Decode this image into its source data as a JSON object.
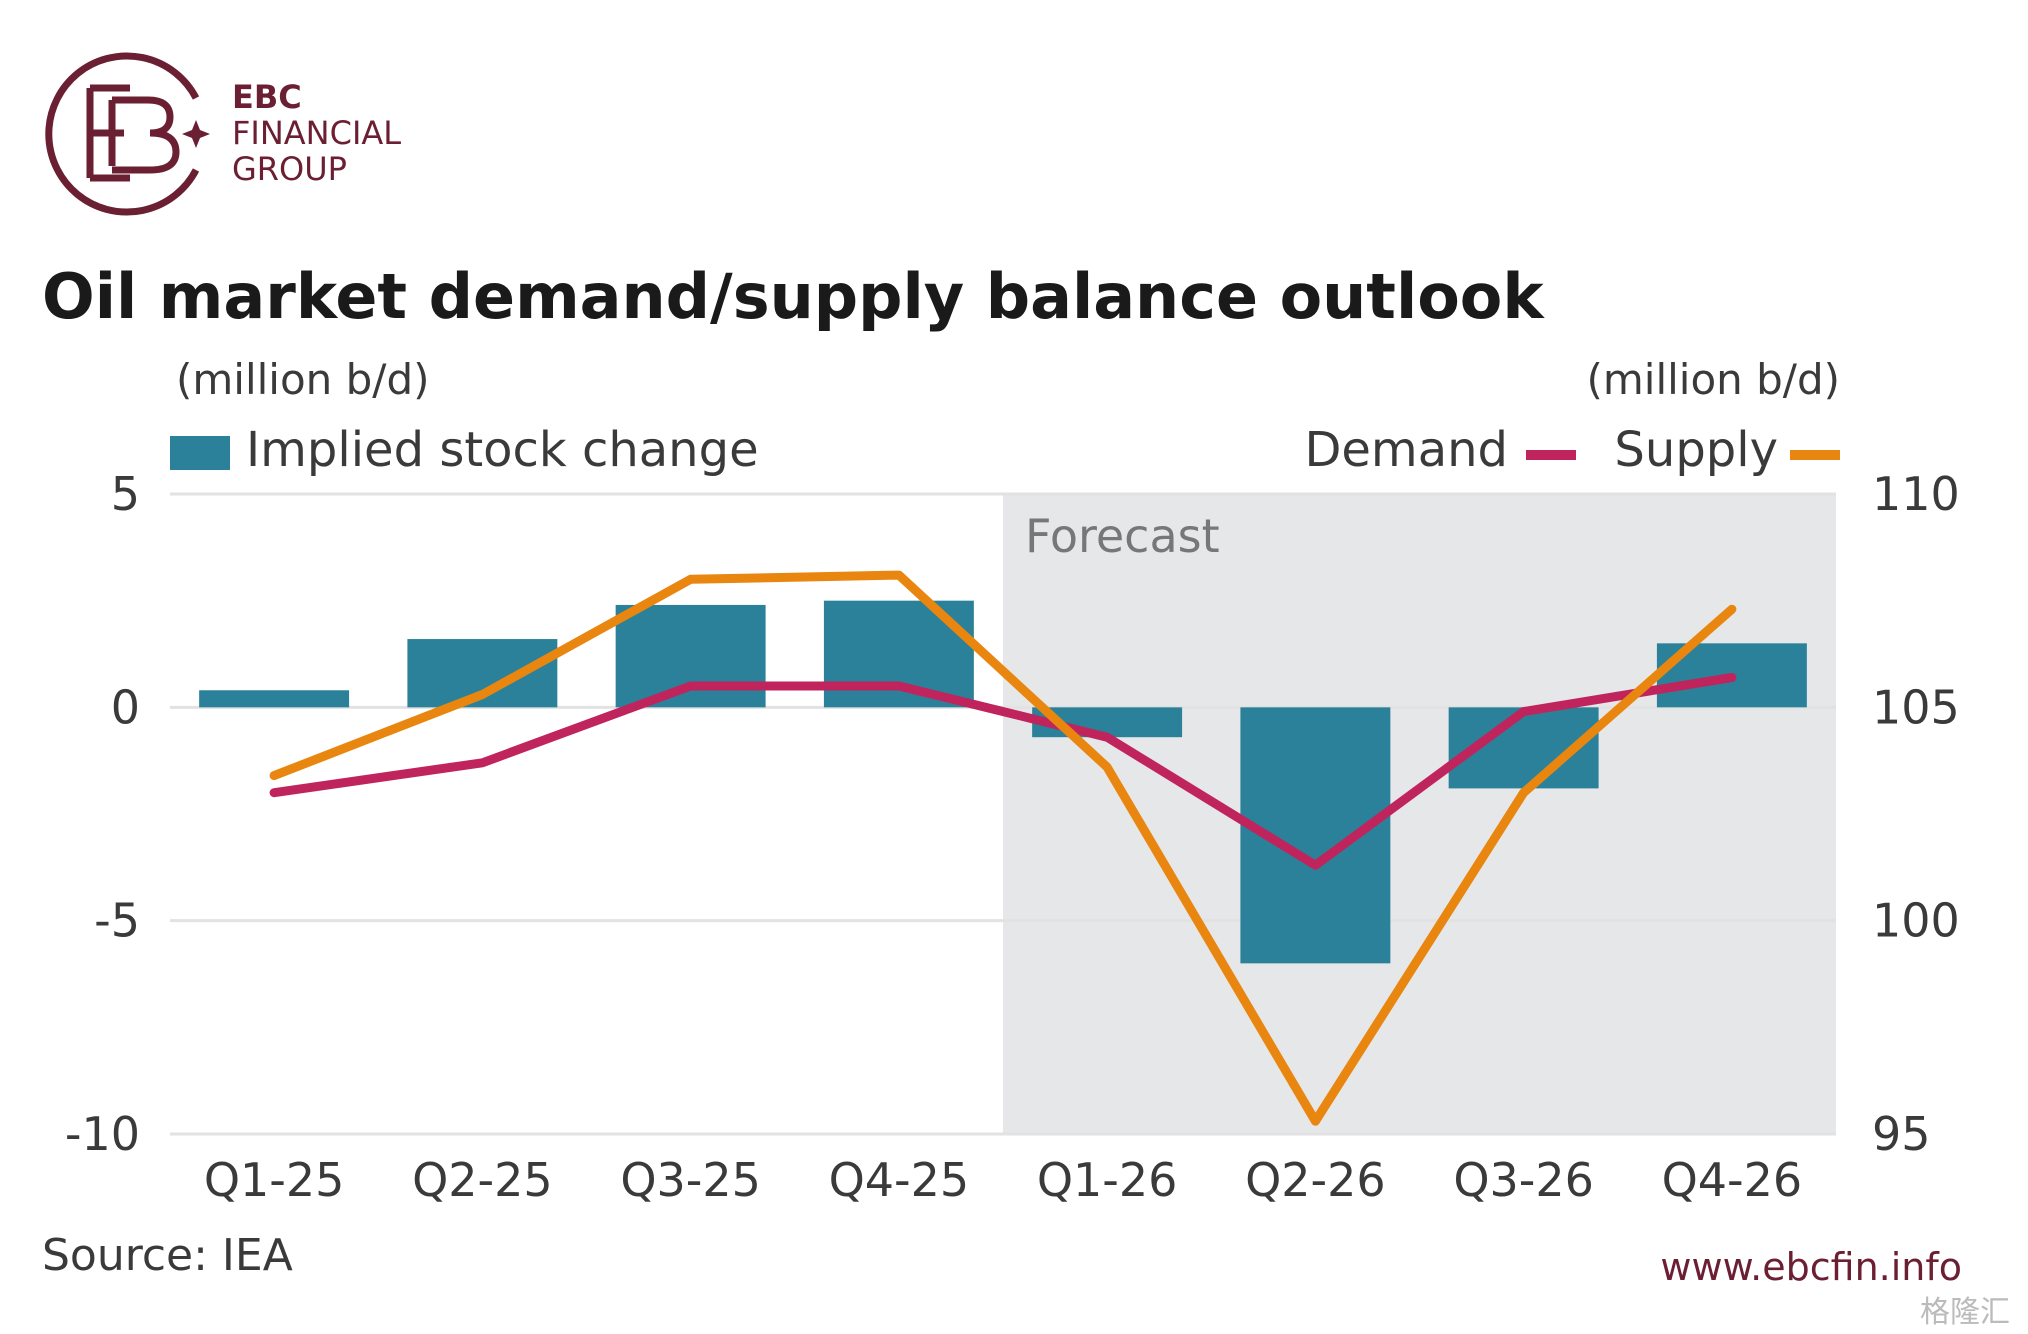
{
  "brand": {
    "line1": "EBC",
    "line2": "FINANCIAL",
    "line3": "GROUP",
    "color": "#6b1f32"
  },
  "chart_data": {
    "type": "bar",
    "title": "Oil market demand/supply balance outlook",
    "left_unit": "(million b/d)",
    "right_unit": "(million b/d)",
    "categories": [
      "Q1-25",
      "Q2-25",
      "Q3-25",
      "Q4-25",
      "Q1-26",
      "Q2-26",
      "Q3-26",
      "Q4-26"
    ],
    "left_axis": {
      "ylim": [
        -10,
        5
      ],
      "ticks": [
        "5",
        "0",
        "-5",
        "-10"
      ],
      "tick_values": [
        5,
        0,
        -5,
        -10
      ]
    },
    "right_axis": {
      "ylim": [
        95,
        110
      ],
      "ticks": [
        "110",
        "105",
        "100",
        "95"
      ],
      "tick_values": [
        110,
        105,
        100,
        95
      ]
    },
    "series": [
      {
        "name": "Implied stock change",
        "type": "bar",
        "axis": "left",
        "color": "#2a8199",
        "values": [
          0.4,
          1.6,
          2.4,
          2.5,
          -0.7,
          -6.0,
          -1.9,
          1.5
        ]
      },
      {
        "name": "Demand",
        "type": "line",
        "axis": "right",
        "color": "#c0245c",
        "values": [
          103.0,
          103.7,
          105.5,
          105.5,
          104.3,
          101.3,
          104.9,
          105.7
        ]
      },
      {
        "name": "Supply",
        "type": "line",
        "axis": "right",
        "color": "#e8860f",
        "values": [
          103.4,
          105.3,
          108.0,
          108.1,
          103.6,
          95.3,
          103.0,
          107.3
        ]
      }
    ],
    "forecast": {
      "label": "Forecast",
      "start_category": "Q1-26",
      "shade": "#e6e7e9"
    },
    "grid": true,
    "legend": {
      "left": "Implied stock change",
      "right": [
        "Demand",
        "Supply"
      ]
    }
  },
  "source": "Source: IEA",
  "url": "www.ebcfin.info",
  "watermark": "格隆汇"
}
